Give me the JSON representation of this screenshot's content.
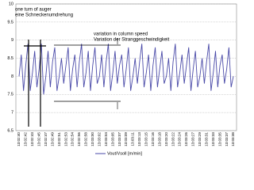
{
  "chart_data": {
    "type": "line",
    "categories": [
      "13:02:40",
      null,
      null,
      "13:02:42",
      null,
      null,
      "13:02:43",
      null,
      null,
      "13:02:45",
      null,
      null,
      "13:02:47",
      null,
      null,
      "13:02:49",
      null,
      null,
      "13:02:51",
      null,
      null,
      "13:02:53",
      null,
      null,
      "13:02:54",
      null,
      null,
      "13:02:56",
      null,
      null,
      "13:02:58",
      null,
      null,
      "13:03:00",
      null,
      null,
      "13:03:02",
      null,
      null,
      "13:03:04",
      null,
      null,
      "13:03:05",
      null,
      null,
      "13:03:07",
      null,
      null,
      "13:03:09",
      null,
      null,
      "13:03:11",
      null,
      null,
      "13:03:13",
      null,
      null,
      "13:03:15",
      null,
      null,
      "13:03:16",
      null,
      null,
      "13:03:18",
      null,
      null,
      "13:03:20",
      null,
      null,
      "13:03:22",
      null,
      null,
      "13:03:24",
      null,
      null,
      "13:03:26",
      null,
      null,
      "13:03:27",
      null,
      null,
      "13:03:29",
      null,
      null,
      "13:03:31",
      null,
      null,
      "13:03:33",
      null,
      null,
      "13:03:35",
      null,
      null,
      "13:03:37",
      null,
      null,
      "13:03:38"
    ],
    "series": [
      {
        "name": "Vout/Vsoll [m/min]",
        "color": "#4a4aa8",
        "values": [
          8.0,
          8.6,
          7.6,
          8.3,
          8.9,
          7.6,
          8.1,
          8.7,
          7.7,
          8.2,
          8.9,
          7.5,
          8.0,
          8.7,
          7.7,
          8.4,
          8.8,
          7.6,
          8.0,
          8.5,
          7.8,
          8.3,
          8.8,
          7.6,
          8.2,
          8.6,
          7.7,
          8.4,
          8.9,
          7.7,
          8.1,
          8.7,
          7.6,
          8.3,
          8.8,
          7.8,
          8.0,
          8.6,
          7.7,
          8.4,
          8.9,
          7.6,
          8.1,
          8.7,
          7.8,
          8.3,
          8.6,
          7.7,
          8.2,
          8.8,
          7.6,
          8.0,
          8.5,
          7.8,
          8.4,
          8.9,
          7.7,
          8.1,
          8.6,
          7.6,
          8.3,
          8.8,
          7.7,
          8.2,
          8.7,
          7.8,
          8.0,
          8.5,
          7.6,
          8.4,
          8.9,
          7.7,
          8.1,
          8.6,
          7.8,
          8.3,
          8.8,
          7.6,
          8.2,
          8.7,
          7.7,
          8.0,
          8.5,
          7.8,
          8.4,
          8.9,
          7.6,
          8.1,
          8.7,
          7.7,
          8.3,
          8.6,
          7.8,
          8.2,
          8.8,
          7.7,
          8.0
        ]
      }
    ],
    "ylim": [
      6.5,
      10
    ],
    "yticks": [
      6.5,
      7,
      7.5,
      8,
      8.5,
      9,
      9.5,
      10
    ],
    "grid": true,
    "annotations": [
      "one turn of auger",
      "eine Schneckenumdrehung",
      "variation in column speed",
      "Variation der Stranggeschwindigkeit"
    ]
  }
}
